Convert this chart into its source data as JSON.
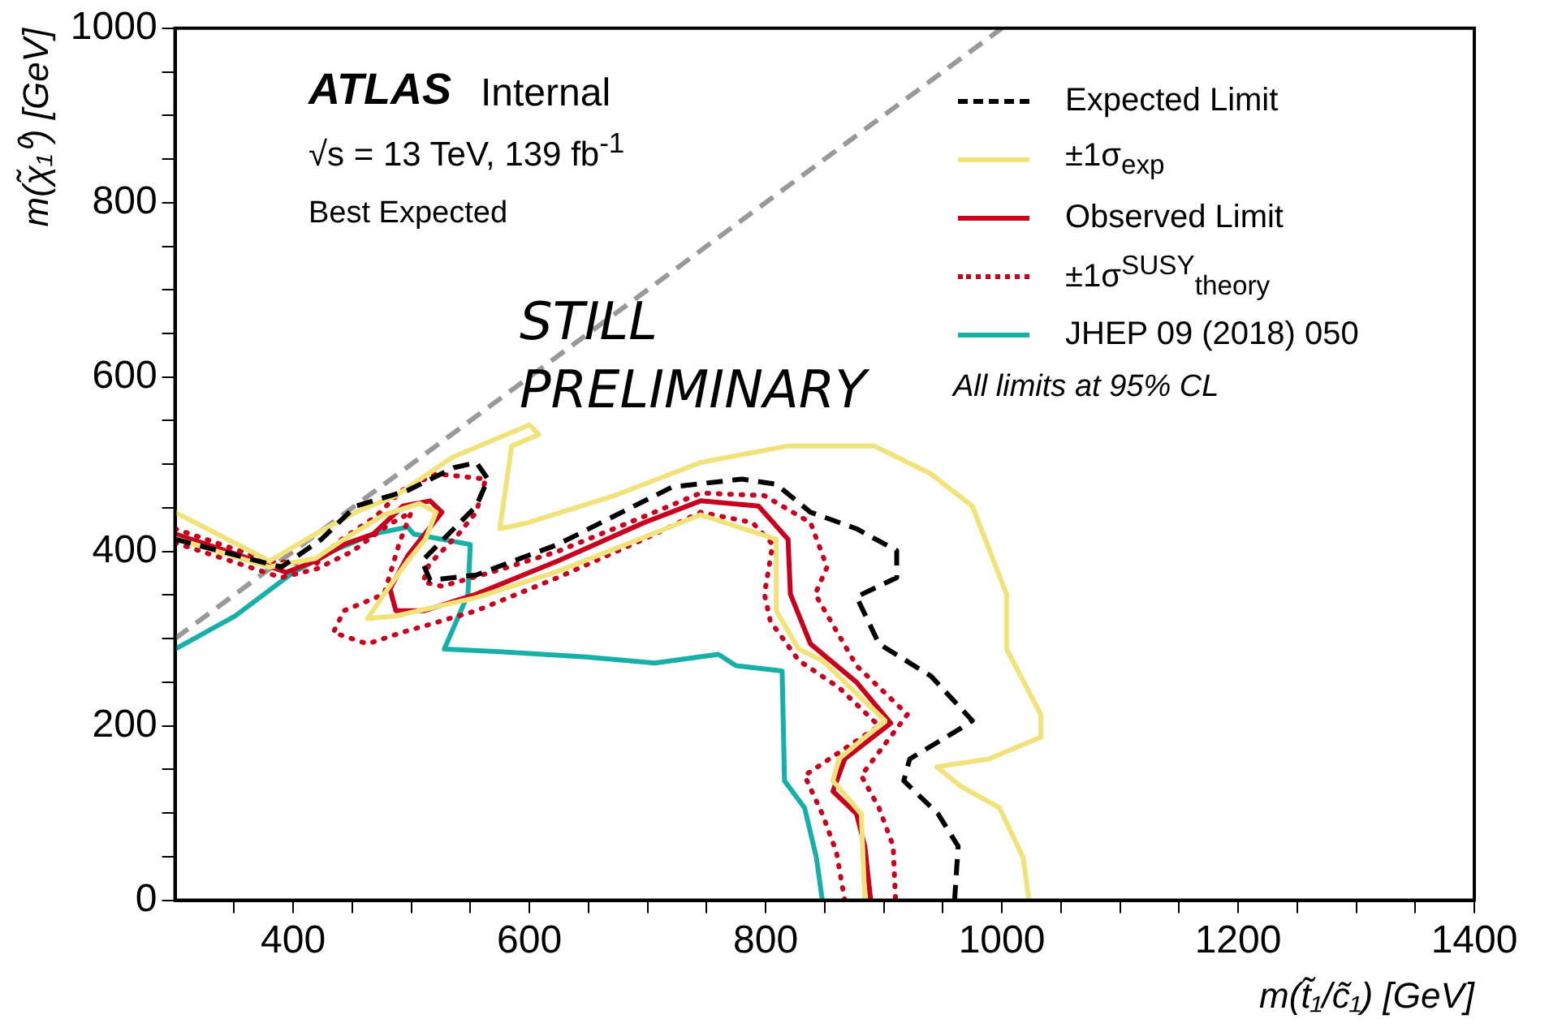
{
  "chart_data": {
    "type": "line",
    "xlabel": "m(t̃₁/c̃₁) [GeV]",
    "ylabel": "m(χ̃₁⁰) [GeV]",
    "xlim": [
      300,
      1400
    ],
    "ylim": [
      0,
      1000
    ],
    "xticks": [
      {
        "value": 350,
        "label": null
      },
      400,
      {
        "value": 450,
        "label": null
      },
      {
        "value": 500,
        "label": null
      },
      {
        "value": 550,
        "label": null
      },
      600,
      {
        "value": 650,
        "label": null
      },
      {
        "value": 700,
        "label": null
      },
      {
        "value": 750,
        "label": null
      },
      800,
      {
        "value": 850,
        "label": null
      },
      {
        "value": 900,
        "label": null
      },
      {
        "value": 950,
        "label": null
      },
      1000,
      {
        "value": 1050,
        "label": null
      },
      {
        "value": 1100,
        "label": null
      },
      {
        "value": 1150,
        "label": null
      },
      1200,
      {
        "value": 1250,
        "label": null
      },
      {
        "value": 1300,
        "label": null
      },
      {
        "value": 1350,
        "label": null
      },
      1400
    ],
    "yticks": [
      0,
      {
        "value": 50,
        "label": null
      },
      {
        "value": 100,
        "label": null
      },
      {
        "value": 150,
        "label": null
      },
      200,
      {
        "value": 250,
        "label": null
      },
      {
        "value": 300,
        "label": null
      },
      {
        "value": 350,
        "label": null
      },
      400,
      {
        "value": 450,
        "label": null
      },
      {
        "value": 500,
        "label": null
      },
      {
        "value": 550,
        "label": null
      },
      600,
      {
        "value": 650,
        "label": null
      },
      {
        "value": 700,
        "label": null
      },
      {
        "value": 750,
        "label": null
      },
      800,
      {
        "value": 850,
        "label": null
      },
      {
        "value": 900,
        "label": null
      },
      {
        "value": 950,
        "label": null
      },
      1000
    ],
    "grid": false,
    "legend": "top right",
    "series": [
      {
        "name": "Expected Limit",
        "color": "#000000",
        "line_style": "dashed",
        "x": [
          300,
          390,
          424,
          453,
          497,
          536,
          555,
          565,
          555,
          536,
          509,
          516,
          555,
          624,
          721,
          780,
          809,
          838,
          877,
          911,
          911,
          877,
          896,
          940,
          975,
          965,
          922,
          917,
          946,
          963,
          960
        ],
        "values": [
          414,
          382,
          414,
          452,
          470,
          496,
          502,
          483,
          452,
          426,
          389,
          367,
          373,
          408,
          474,
          483,
          477,
          445,
          426,
          401,
          370,
          348,
          294,
          257,
          206,
          197,
          162,
          137,
          99,
          62,
          0
        ]
      },
      {
        "name": "±1σ$_{exp}$",
        "color": "#f2e27a",
        "line_style": "solid",
        "x": [
          300,
          380,
          419,
          453,
          487,
          535,
          600,
          608,
          585,
          575,
          599,
          672,
          745,
          819,
          892,
          940,
          975,
          1004,
          1004,
          1033,
          1033,
          989,
          945,
          965,
          998,
          1018,
          1023
        ],
        "values": [
          445,
          389,
          420,
          445,
          464,
          508,
          545,
          534,
          521,
          426,
          433,
          464,
          502,
          521,
          521,
          489,
          452,
          351,
          288,
          213,
          187,
          162,
          153,
          131,
          106,
          49,
          0
        ]
      },
      {
        "color": "#f2e27a",
        "line_style": "solid",
        "x": [
          300,
          380,
          419,
          443,
          477,
          507,
          521,
          512,
          497,
          477,
          463,
          487,
          555,
          624,
          745,
          809,
          809,
          828,
          848,
          901,
          862,
          857,
          881,
          884
        ],
        "values": [
          415,
          382,
          392,
          414,
          442,
          455,
          445,
          414,
          389,
          351,
          323,
          326,
          347,
          377,
          442,
          414,
          332,
          288,
          275,
          206,
          162,
          137,
          99,
          0
        ]
      },
      {
        "name": "Observed Limit",
        "color": "#c8001e",
        "line_style": "solid",
        "x": [
          300,
          356,
          394,
          419,
          443,
          468,
          493,
          516,
          526,
          497,
          482,
          487,
          511,
          555,
          624,
          697,
          745,
          794,
          819,
          821,
          838,
          877,
          906,
          867,
          857,
          877,
          884,
          889
        ],
        "values": [
          420,
          395,
          376,
          389,
          408,
          420,
          452,
          458,
          445,
          395,
          357,
          332,
          332,
          351,
          389,
          433,
          458,
          452,
          414,
          351,
          294,
          250,
          203,
          162,
          125,
          99,
          62,
          0
        ]
      },
      {
        "name": "±1σ$^{SUSY}$$_{theory}$",
        "color": "#c8001e",
        "line_style": "dotted",
        "x": [
          300,
          380,
          419,
          438,
          470,
          492,
          521,
          563,
          555,
          540,
          515,
          510,
          526,
          575,
          624,
          697,
          745,
          799,
          838,
          852,
          842,
          877,
          920,
          881,
          896,
          908,
          910
        ],
        "values": [
          426,
          389,
          385,
          411,
          440,
          470,
          489,
          483,
          445,
          420,
          385,
          365,
          360,
          379,
          400,
          440,
          467,
          464,
          433,
          382,
          351,
          269,
          213,
          143,
          106,
          62,
          0
        ]
      },
      {
        "color": "#c8001e",
        "line_style": "dotted",
        "x": [
          300,
          390,
          420,
          450,
          480,
          500,
          490,
          477,
          443,
          434,
          463,
          492,
          555,
          624,
          697,
          745,
          789,
          806,
          799,
          804,
          828,
          862,
          896,
          833,
          848,
          860,
          867
        ],
        "values": [
          410,
          370,
          380,
          400,
          430,
          445,
          410,
          351,
          332,
          307,
          294,
          307,
          332,
          370,
          414,
          445,
          433,
          408,
          351,
          320,
          275,
          244,
          200,
          143,
          99,
          55,
          0
        ]
      },
      {
        "name": "JHEP 09 (2018) 050",
        "color": "#17b0a8",
        "line_style": "solid",
        "x": [
          300,
          351,
          399,
          429,
          468,
          497,
          502,
          550,
          548,
          536,
          528,
          575,
          648,
          706,
          760,
          775,
          814,
          816,
          833,
          843,
          848
        ],
        "values": [
          288,
          326,
          375,
          398,
          420,
          428,
          420,
          408,
          351,
          313,
          288,
          285,
          279,
          272,
          282,
          269,
          263,
          137,
          106,
          49,
          0
        ]
      },
      {
        "color": "#999999",
        "line_style": "dashed",
        "x": [
          300,
          1000
        ],
        "values": [
          300,
          1000
        ]
      }
    ],
    "annotations": [
      "ATLAS",
      "Internal",
      "√s = 13 TeV, 139 fb$^{-1}$",
      "Best Expected",
      "All limits at 95% CL",
      "STILL PRELIMINARY"
    ]
  }
}
